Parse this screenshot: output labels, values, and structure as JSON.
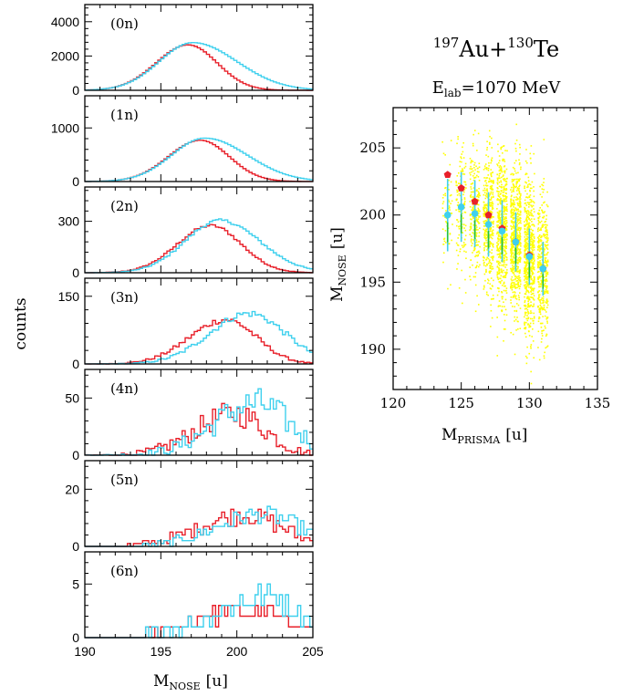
{
  "left_plot": {
    "ylabel": "counts",
    "xlabel_main": "M",
    "xlabel_sub": "NOSE",
    "xlabel_unit": "[u]",
    "xlim": [
      190,
      205
    ],
    "xticks": [
      "190",
      "195",
      "200",
      "205"
    ]
  },
  "right_plot": {
    "title_line1": {
      "a_mass": "197",
      "a_sym": "Au+",
      "b_mass": "130",
      "b_sym": "Te"
    },
    "title_line2": {
      "main": "E",
      "sub": "lab",
      "rest": "=1070 MeV"
    },
    "xlabel_main": "M",
    "xlabel_sub": "PRISMA",
    "xlabel_unit": "[u]",
    "ylabel_main": "M",
    "ylabel_sub": "NOSE",
    "ylabel_unit": "[u]",
    "xticks": [
      "120",
      "125",
      "130",
      "135"
    ],
    "yticks": [
      "190",
      "195",
      "200",
      "205"
    ]
  },
  "colors": {
    "red": "#e8202a",
    "cyan": "#3fd0ee",
    "scatter": "#ffff00",
    "errorbar": "#22c040"
  },
  "chart_data": [
    {
      "type": "line",
      "series_style": "histogram",
      "xlim": [
        190,
        205
      ],
      "panels": [
        {
          "label": "(0n)",
          "ylim": [
            0,
            5000
          ],
          "yticks": [
            "0",
            "2000",
            "4000"
          ],
          "ytick_values": [
            0,
            2000,
            4000
          ],
          "red_peak": {
            "center": 196.8,
            "sigma_left": 2.1,
            "sigma_right": 1.9,
            "height": 2650
          },
          "cyan_peak": {
            "center": 197.1,
            "sigma_left": 2.2,
            "sigma_right": 2.9,
            "height": 2780
          }
        },
        {
          "label": "(1n)",
          "ylim": [
            0,
            1600
          ],
          "yticks": [
            "0",
            "1000"
          ],
          "ytick_values": [
            0,
            1000
          ],
          "red_peak": {
            "center": 197.6,
            "sigma_left": 2.1,
            "sigma_right": 1.9,
            "height": 770
          },
          "cyan_peak": {
            "center": 197.9,
            "sigma_left": 2.2,
            "sigma_right": 2.8,
            "height": 810
          }
        },
        {
          "label": "(2n)",
          "ylim": [
            0,
            500
          ],
          "yticks": [
            "0",
            "300"
          ],
          "ytick_values": [
            0,
            300
          ],
          "red_peak": {
            "center": 198.3,
            "sigma_left": 2.2,
            "sigma_right": 2.0,
            "height": 275
          },
          "cyan_peak": {
            "center": 198.9,
            "sigma_left": 2.3,
            "sigma_right": 2.6,
            "height": 305
          }
        },
        {
          "label": "(3n)",
          "ylim": [
            0,
            190
          ],
          "yticks": [
            "0",
            "150"
          ],
          "ytick_values": [
            0,
            150
          ],
          "red_peak": {
            "center": 199.3,
            "sigma_left": 2.4,
            "sigma_right": 2.0,
            "height": 98
          },
          "cyan_peak": {
            "center": 200.8,
            "sigma_left": 2.6,
            "sigma_right": 2.4,
            "height": 112
          }
        },
        {
          "label": "(4n)",
          "ylim": [
            0,
            75
          ],
          "yticks": [
            "0",
            "50"
          ],
          "ytick_values": [
            0,
            50
          ],
          "red_peak": {
            "center": 199.9,
            "sigma_left": 2.6,
            "sigma_right": 2.0,
            "height": 36
          },
          "cyan_peak": {
            "center": 201.3,
            "sigma_left": 2.8,
            "sigma_right": 2.2,
            "height": 45
          }
        },
        {
          "label": "(5n)",
          "ylim": [
            0,
            30
          ],
          "yticks": [
            "0",
            "20"
          ],
          "ytick_values": [
            0,
            20
          ],
          "red_peak": {
            "center": 200.6,
            "sigma_left": 3.0,
            "sigma_right": 2.4,
            "height": 11
          },
          "cyan_peak": {
            "center": 201.6,
            "sigma_left": 3.0,
            "sigma_right": 2.6,
            "height": 11
          }
        },
        {
          "label": "(6n)",
          "ylim": [
            0,
            8
          ],
          "yticks": [
            "0",
            "5"
          ],
          "ytick_values": [
            0,
            5
          ],
          "red_peak": {
            "center": 200.8,
            "sigma_left": 3.5,
            "sigma_right": 2.6,
            "height": 2.6
          },
          "cyan_peak": {
            "center": 202.0,
            "sigma_left": 3.4,
            "sigma_right": 2.4,
            "height": 3.8
          }
        }
      ]
    },
    {
      "type": "scatter",
      "xlim": [
        120,
        135
      ],
      "ylim": [
        187,
        208
      ],
      "xtick_values": [
        120,
        125,
        130,
        135
      ],
      "ytick_values": [
        190,
        195,
        200,
        205
      ],
      "scatter_columns": [
        {
          "x": 124,
          "center": 199.8,
          "spread": 2.3,
          "n": 60
        },
        {
          "x": 125,
          "center": 200.2,
          "spread": 2.6,
          "n": 130
        },
        {
          "x": 126,
          "center": 200.0,
          "spread": 2.8,
          "n": 230
        },
        {
          "x": 127,
          "center": 199.4,
          "spread": 3.0,
          "n": 380
        },
        {
          "x": 128,
          "center": 198.8,
          "spread": 3.1,
          "n": 520
        },
        {
          "x": 129,
          "center": 198.0,
          "spread": 3.1,
          "n": 600
        },
        {
          "x": 130,
          "center": 197.0,
          "spread": 3.2,
          "n": 620
        },
        {
          "x": 131,
          "center": 196.0,
          "spread": 3.0,
          "n": 420
        }
      ],
      "series": [
        {
          "marker": "red-pentagon",
          "x": [
            124,
            125,
            126,
            127,
            128,
            129,
            130,
            131
          ],
          "y": [
            203,
            202,
            201,
            200,
            199,
            198,
            197,
            196
          ]
        },
        {
          "marker": "cyan-circle-errorbar",
          "x": [
            124,
            125,
            126,
            127,
            128,
            129,
            130,
            131
          ],
          "y": [
            200,
            200.6,
            200.1,
            199.3,
            198.8,
            198.0,
            196.9,
            196.0
          ],
          "err": [
            2.7,
            2.6,
            2.5,
            2.4,
            2.3,
            2.2,
            2.1,
            2.0
          ]
        }
      ]
    }
  ]
}
